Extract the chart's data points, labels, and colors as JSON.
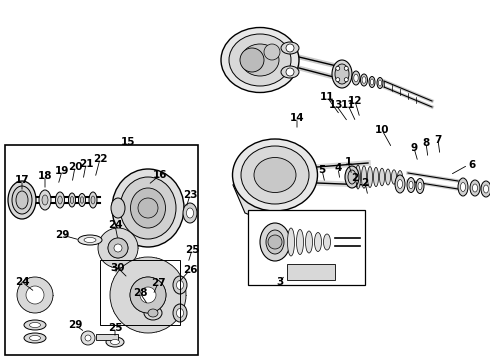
{
  "bg": "#ffffff",
  "lc": "#000000",
  "fig_w": 4.9,
  "fig_h": 3.6,
  "dpi": 100,
  "gray1": "#888888",
  "gray2": "#aaaaaa",
  "gray3": "#cccccc",
  "gray4": "#dddddd",
  "gray5": "#eeeeee"
}
